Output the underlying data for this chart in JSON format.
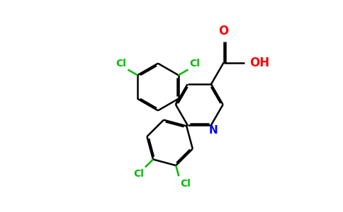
{
  "bg_color": "#ffffff",
  "bond_color": "#000000",
  "cl_color": "#00bb00",
  "n_color": "#0000ff",
  "o_color": "#ff0000",
  "lw": 1.8,
  "dbo": 0.06,
  "xlim": [
    -2.5,
    5.5
  ],
  "ylim": [
    -3.5,
    4.0
  ]
}
